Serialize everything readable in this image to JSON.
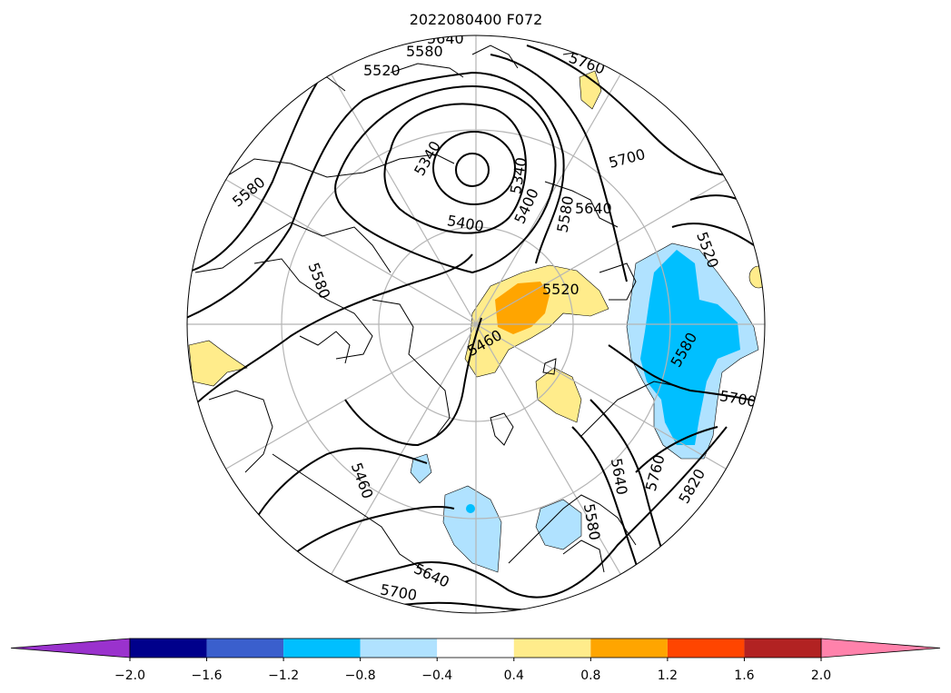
{
  "map": {
    "title": "2022080400 F072",
    "projection": "north-polar-stereographic",
    "gridlines": true,
    "contour_labels": [
      "5640",
      "5580",
      "5520",
      "5580",
      "5340",
      "5340",
      "5400",
      "5400",
      "5580",
      "5640",
      "5700",
      "5760",
      "5520",
      "5460",
      "5520",
      "5580",
      "5700",
      "5820",
      "5760",
      "5640",
      "5640",
      "5700",
      "5460",
      "5580",
      "5580"
    ],
    "colorbar": {
      "ticks": [
        "−2.0",
        "−1.6",
        "−1.2",
        "−0.8",
        "−0.4",
        "0.4",
        "0.8",
        "1.2",
        "1.6",
        "2.0"
      ],
      "colors": [
        "#9a32cd",
        "#00008b",
        "#3a5fcd",
        "#00bfff",
        "#b0e2ff",
        "#ffffff",
        "#ffec8b",
        "#ffa500",
        "#ff4500",
        "#b22222",
        "#ff82ab"
      ]
    }
  }
}
